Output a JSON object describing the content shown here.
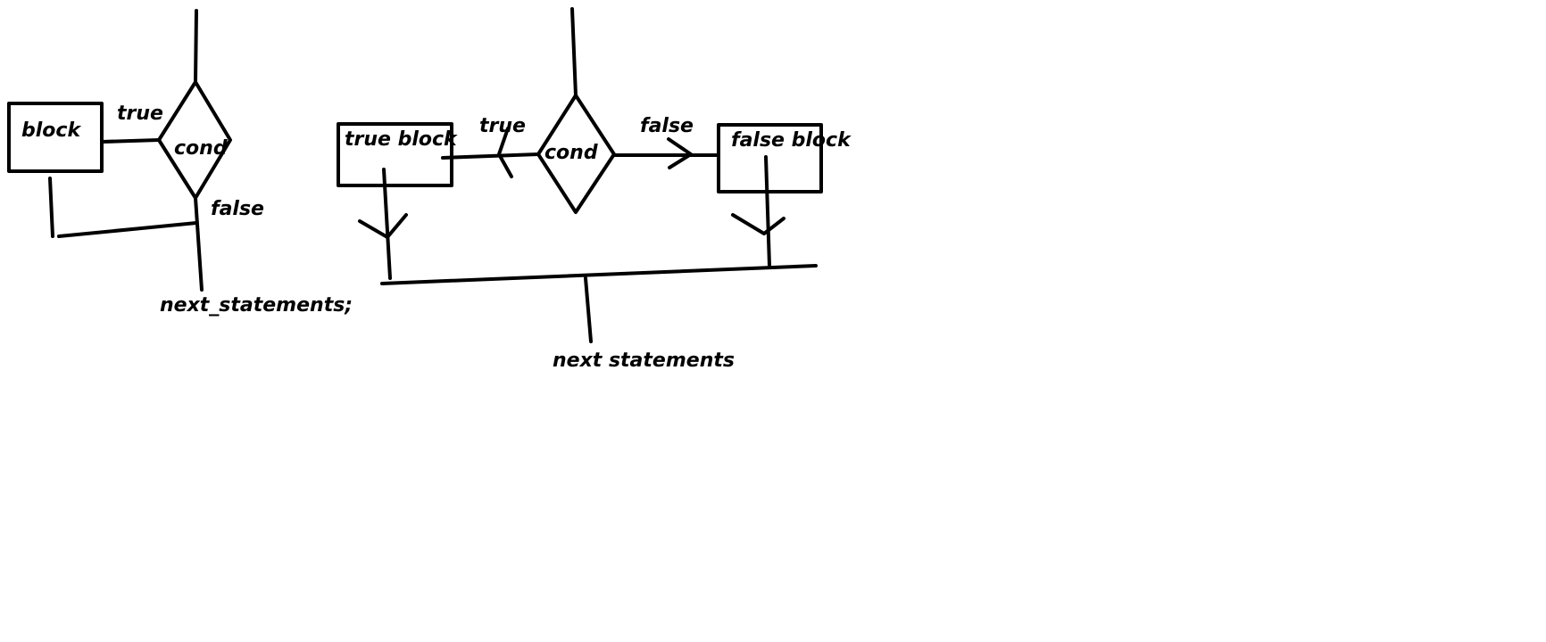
{
  "if_diagram": {
    "block_label": "block",
    "cond_label": "cond",
    "true_label": "true",
    "false_label": "false",
    "next_label": "next_statements;"
  },
  "if_else_diagram": {
    "true_block_label": "true block",
    "false_block_label": "false block",
    "cond_label": "cond",
    "true_label": "true",
    "false_label": "false",
    "next_label": "next statements"
  }
}
